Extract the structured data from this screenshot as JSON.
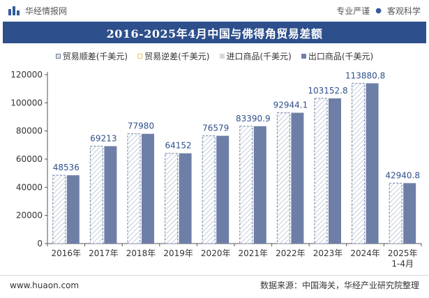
{
  "header": {
    "site_name": "华经情报网",
    "tagline_left": "专业严谨",
    "tagline_right": "客观科学",
    "separator": "●"
  },
  "chart_data": {
    "type": "bar",
    "title": "2016-2025年4月中国与佛得角贸易差额",
    "categories": [
      "2016年",
      "2017年",
      "2018年",
      "2019年",
      "2020年",
      "2021年",
      "2022年",
      "2023年",
      "2024年",
      "2025年\n1-4月"
    ],
    "series": [
      {
        "name": "贸易顺差(千美元)",
        "values": [
          48536,
          69213,
          77980,
          64152,
          76579,
          83390.9,
          92944.1,
          103152.8,
          113880.8,
          42940.8
        ],
        "labels": [
          "48536",
          "69213",
          "77980",
          "64152",
          "76579",
          "83390.9",
          "92944.1",
          "103152.8",
          "113880.8",
          "42940.8"
        ],
        "style": "hatched"
      },
      {
        "name": "贸易逆差(千美元)",
        "values": [
          0,
          0,
          0,
          0,
          0,
          0,
          0,
          0,
          0,
          0
        ],
        "style": "hatched-gold"
      },
      {
        "name": "进口商品(千美元)",
        "values": [
          0,
          0,
          0,
          0,
          0,
          0,
          0,
          0,
          0,
          0
        ],
        "style": "grey"
      },
      {
        "name": "出口商品(千美元)",
        "values": [
          48536,
          69213,
          77980,
          64152,
          76579,
          83390.9,
          92944.1,
          103152.8,
          113880.8,
          42940.8
        ],
        "style": "solid"
      }
    ],
    "ylim": [
      0,
      120000
    ],
    "yticks": [
      0,
      20000,
      40000,
      60000,
      80000,
      100000,
      120000
    ],
    "ytick_labels": [
      "0",
      "20000",
      "40000",
      "60000",
      "80000",
      "100000",
      "120000"
    ],
    "xlabel": "",
    "ylabel": "",
    "grid": false,
    "legend_position": "top"
  },
  "colors": {
    "title_bg": "#2d4f8c",
    "export_bar": "#6e7fa7",
    "surplus_stroke": "#6e7fa7",
    "label_color": "#2e4f8a",
    "axis": "#555555",
    "deficit_swatch": "#e7c66a",
    "import_swatch": "#d8d8d8"
  },
  "footer": {
    "website": "www.huaon.com",
    "source": "数据来源：中国海关，华经产业研究院整理"
  }
}
